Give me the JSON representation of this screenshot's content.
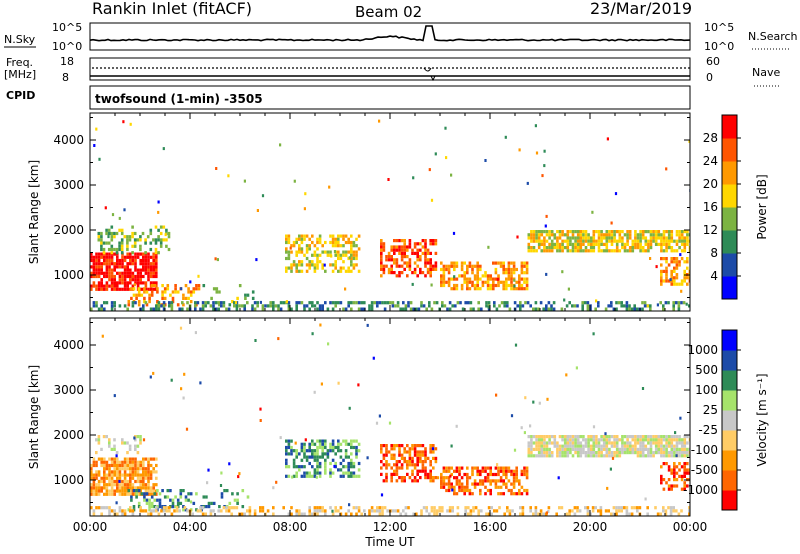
{
  "header": {
    "station": "Rankin Inlet (fitACF)",
    "beam": "Beam 02",
    "date": "23/Mar/2019"
  },
  "top_panels": {
    "nsky_label": "N.Sky",
    "nsearch_label": "N.Search",
    "scale_top": "10^5",
    "scale_bottom": "10^0",
    "freq_label_1": "Freq.",
    "freq_label_2": "[MHz]",
    "freq_top": "18",
    "freq_bottom": "8",
    "nave_label": "Nave",
    "nave_top": "60",
    "nave_bottom": "0",
    "cpid_label": "CPID",
    "cpid_text": "twofsound (1-min) -3505"
  },
  "colors": {
    "power_scale": [
      "#0000ff",
      "#1c4ba8",
      "#2e8b57",
      "#7cb342",
      "#ffd700",
      "#ff9900",
      "#ff5500",
      "#ff0000"
    ],
    "velocity_scale": [
      "#ff0000",
      "#ff6600",
      "#ff9900",
      "#ffcc66",
      "#c8c8c8",
      "#a6e36b",
      "#2e8b57",
      "#1c4ba8",
      "#0000ff"
    ]
  },
  "chart_data": [
    {
      "type": "heatmap",
      "name": "power-panel",
      "ylabel": "Slant Range [km]",
      "yticks": [
        "1000",
        "2000",
        "3000",
        "4000"
      ],
      "ylim": [
        200,
        4600
      ],
      "xlim": [
        0,
        24
      ],
      "colorbar_label": "Power [dB]",
      "colorbar_ticks": [
        "4",
        "8",
        "12",
        "16",
        "20",
        "24",
        "28"
      ],
      "bands": [
        {
          "t0": 0.0,
          "t1": 2.7,
          "r0": 700,
          "r1": 1500,
          "level": 7,
          "density": 0.8
        },
        {
          "t0": 0.3,
          "t1": 3.2,
          "r0": 1500,
          "r1": 2100,
          "level": 3,
          "density": 0.4
        },
        {
          "t0": 1.5,
          "t1": 4.5,
          "r0": 350,
          "r1": 800,
          "level": 5,
          "density": 0.3
        },
        {
          "t0": 4.5,
          "t1": 6.5,
          "r0": 350,
          "r1": 800,
          "level": 3,
          "density": 0.15
        },
        {
          "t0": 7.8,
          "t1": 10.8,
          "r0": 1100,
          "r1": 1900,
          "level": 4,
          "density": 0.5
        },
        {
          "t0": 11.6,
          "t1": 13.8,
          "r0": 1000,
          "r1": 1800,
          "level": 6,
          "density": 0.55
        },
        {
          "t0": 14.0,
          "t1": 17.5,
          "r0": 700,
          "r1": 1300,
          "level": 5,
          "density": 0.6
        },
        {
          "t0": 17.5,
          "t1": 24.0,
          "r0": 1550,
          "r1": 2000,
          "level": 4,
          "density": 0.8
        },
        {
          "t0": 22.8,
          "t1": 24.0,
          "r0": 800,
          "r1": 1400,
          "level": 5,
          "density": 0.5
        },
        {
          "t0": 0.0,
          "t1": 24.0,
          "r0": 220,
          "r1": 420,
          "level": 2,
          "density": 0.45
        }
      ]
    },
    {
      "type": "heatmap",
      "name": "velocity-panel",
      "ylabel": "Slant Range [km]",
      "yticks": [
        "1000",
        "2000",
        "3000",
        "4000"
      ],
      "ylim": [
        200,
        4600
      ],
      "xlim": [
        0,
        24
      ],
      "colorbar_label": "Velocity [m s⁻¹]",
      "colorbar_ticks": [
        "-1000",
        "-500",
        "-100",
        "-25",
        "25",
        "100",
        "500",
        "1000"
      ],
      "xlabel": "Time UT",
      "xticks": [
        "00:00",
        "04:00",
        "08:00",
        "12:00",
        "16:00",
        "20:00",
        "00:00"
      ],
      "bands": [
        {
          "t0": 0.0,
          "t1": 2.7,
          "r0": 700,
          "r1": 1500,
          "level": 2,
          "density": 0.8
        },
        {
          "t0": 0.2,
          "t1": 2.0,
          "r0": 1600,
          "r1": 2000,
          "level": 4,
          "density": 0.35
        },
        {
          "t0": 1.5,
          "t1": 4.5,
          "r0": 350,
          "r1": 800,
          "level": 6,
          "density": 0.3
        },
        {
          "t0": 4.5,
          "t1": 6.5,
          "r0": 350,
          "r1": 800,
          "level": 6,
          "density": 0.15
        },
        {
          "t0": 7.8,
          "t1": 10.8,
          "r0": 1100,
          "r1": 1900,
          "level": 6,
          "density": 0.5
        },
        {
          "t0": 11.6,
          "t1": 13.8,
          "r0": 1000,
          "r1": 1800,
          "level": 1,
          "density": 0.55
        },
        {
          "t0": 14.0,
          "t1": 17.5,
          "r0": 700,
          "r1": 1300,
          "level": 1,
          "density": 0.6
        },
        {
          "t0": 17.5,
          "t1": 24.0,
          "r0": 1550,
          "r1": 2000,
          "level": 4,
          "density": 0.85
        },
        {
          "t0": 22.8,
          "t1": 24.0,
          "r0": 800,
          "r1": 1400,
          "level": 1,
          "density": 0.5
        },
        {
          "t0": 0.0,
          "t1": 24.0,
          "r0": 220,
          "r1": 420,
          "level": 3,
          "density": 0.45
        }
      ]
    }
  ]
}
